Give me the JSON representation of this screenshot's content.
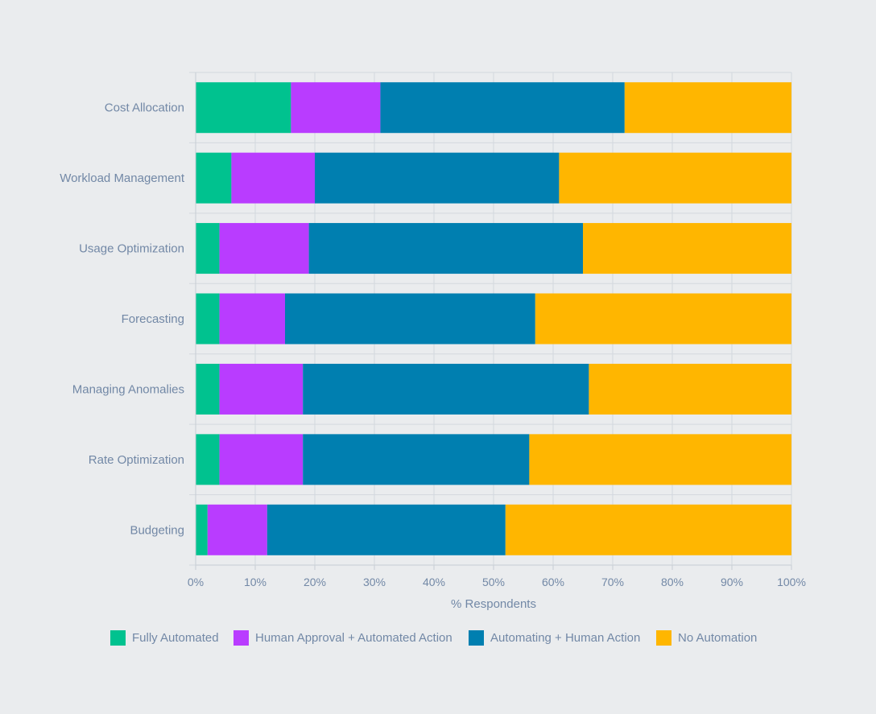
{
  "chart_data": {
    "type": "bar",
    "orientation": "horizontal",
    "stacked": true,
    "categories": [
      "Cost Allocation",
      "Workload Management",
      "Usage Optimization",
      "Forecasting",
      "Managing Anomalies",
      "Rate Optimization",
      "Budgeting"
    ],
    "series": [
      {
        "name": "Fully Automated",
        "color": "#00c28f",
        "values": [
          16,
          6,
          4,
          4,
          4,
          4,
          2
        ]
      },
      {
        "name": "Human Approval + Automated Action",
        "color": "#b93cff",
        "values": [
          15,
          14,
          15,
          11,
          14,
          14,
          10
        ]
      },
      {
        "name": "Automating + Human Action",
        "color": "#007fb0",
        "values": [
          41,
          41,
          46,
          42,
          48,
          38,
          40
        ]
      },
      {
        "name": "No Automation",
        "color": "#ffb600",
        "values": [
          28,
          39,
          35,
          43,
          34,
          44,
          48
        ]
      }
    ],
    "xticks": [
      "0%",
      "10%",
      "20%",
      "30%",
      "40%",
      "50%",
      "60%",
      "70%",
      "80%",
      "90%",
      "100%"
    ],
    "xlim": [
      0,
      100
    ],
    "xlabel": "% Respondents",
    "ylabel": "",
    "title": "",
    "grid": true,
    "legend": "bottom"
  }
}
